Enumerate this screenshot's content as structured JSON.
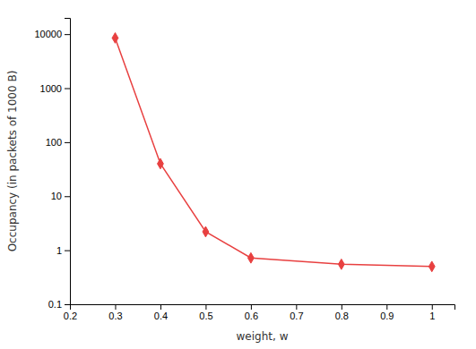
{
  "chart_data": {
    "type": "line",
    "x": [
      0.3,
      0.4,
      0.5,
      0.6,
      0.8,
      1.0
    ],
    "values": [
      8500,
      40,
      2.2,
      0.72,
      0.55,
      0.5
    ],
    "color": "#e84040",
    "marker": "diamond",
    "xlabel": "weight, w",
    "ylabel": "Occupancy (in packets of 1000 B)",
    "xlim": [
      0.2,
      1.05
    ],
    "ylim": [
      0.1,
      20000
    ],
    "xticks": [
      0.2,
      0.3,
      0.4,
      0.5,
      0.6,
      0.7,
      0.8,
      0.9,
      1.0
    ],
    "yticks": [
      0.1,
      1,
      10,
      100,
      1000,
      10000
    ],
    "log": "y",
    "grid": false
  }
}
